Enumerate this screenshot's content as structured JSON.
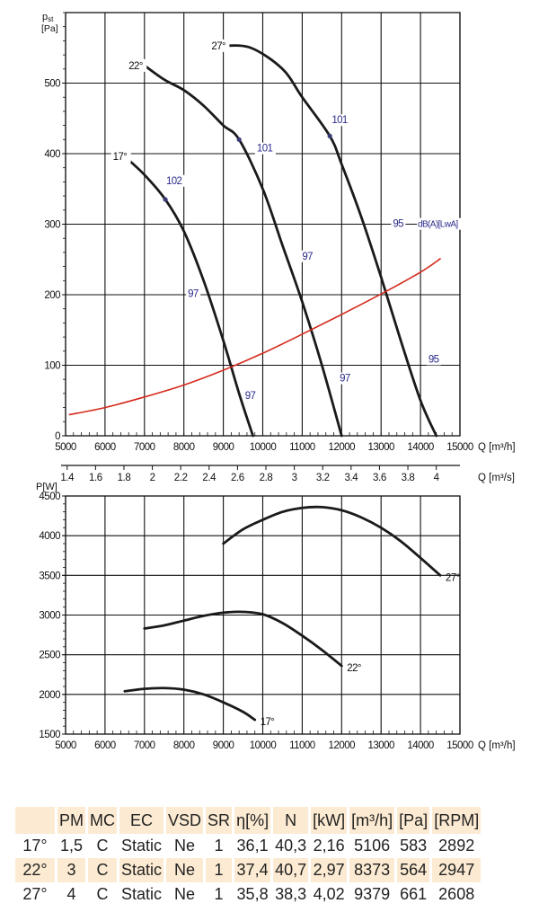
{
  "chart_data": [
    {
      "type": "line",
      "title": "",
      "ylabel": "p_st [Pa]",
      "ylabel_main": "p",
      "ylabel_sub": "st",
      "ylabel_unit": "[Pa]",
      "xlabel": "Q [m³/h]",
      "xlim": [
        5000,
        15000
      ],
      "ylim": [
        0,
        600
      ],
      "xticks": [
        5000,
        6000,
        7000,
        8000,
        9000,
        10000,
        11000,
        12000,
        13000,
        14000,
        15000
      ],
      "yticks": [
        0,
        100,
        200,
        300,
        400,
        500
      ],
      "grid": true,
      "secondary_xaxis": {
        "label": "Q [m³/s]",
        "ticks": [
          "1.4",
          "1.6",
          "1.8",
          "2",
          "2.2",
          "2.4",
          "2.6",
          "2.8",
          "3",
          "3.2",
          "3.4",
          "3.6",
          "3.8",
          "4"
        ]
      },
      "series": [
        {
          "name": "17°",
          "color": "#1a1a1a",
          "x": [
            6500,
            7000,
            7530,
            8000,
            8500,
            9000,
            9400,
            9750
          ],
          "y": [
            396,
            370,
            335,
            290,
            220,
            135,
            60,
            0
          ]
        },
        {
          "name": "22°",
          "color": "#1a1a1a",
          "x": [
            7000,
            7500,
            8000,
            8500,
            9000,
            9400,
            10000,
            10500,
            11000,
            11500,
            12000
          ],
          "y": [
            525,
            505,
            490,
            468,
            440,
            420,
            350,
            270,
            190,
            100,
            0
          ]
        },
        {
          "name": "27°",
          "color": "#1a1a1a",
          "x": [
            9000,
            9700,
            10500,
            11000,
            11700,
            12000,
            12500,
            13000,
            13500,
            14000,
            14400
          ],
          "y": [
            553,
            550,
            520,
            480,
            425,
            385,
            310,
            225,
            135,
            50,
            0
          ]
        },
        {
          "name": "system",
          "color": "#d42a1c",
          "x": [
            5100,
            6000,
            7000,
            8000,
            9000,
            10000,
            11000,
            12000,
            13000,
            14000,
            14500
          ],
          "y": [
            30,
            40,
            55,
            72,
            93,
            117,
            144,
            172,
            201,
            232,
            251
          ]
        }
      ],
      "markers": [
        {
          "series": "17°",
          "x": 7530,
          "y": 335
        },
        {
          "series": "22°",
          "x": 9400,
          "y": 420
        },
        {
          "series": "27°",
          "x": 11700,
          "y": 425
        }
      ],
      "annotations": [
        {
          "text": "102",
          "x": 7550,
          "y": 357
        },
        {
          "text": "101",
          "x": 9850,
          "y": 403
        },
        {
          "text": "101",
          "x": 11750,
          "y": 443
        },
        {
          "text": "97",
          "x": 8100,
          "y": 197
        },
        {
          "text": "97",
          "x": 9550,
          "y": 52
        },
        {
          "text": "97",
          "x": 11000,
          "y": 250
        },
        {
          "text": "97",
          "x": 11950,
          "y": 77
        },
        {
          "text": "95",
          "x": 13300,
          "y": 296
        },
        {
          "text": "dB(A)[LwA]",
          "x": 13930,
          "y": 296
        },
        {
          "text": "95",
          "x": 14200,
          "y": 104
        }
      ],
      "curve_labels": [
        {
          "text": "17°",
          "x": 6200,
          "y": 396
        },
        {
          "text": "22°",
          "x": 6600,
          "y": 525
        },
        {
          "text": "27°",
          "x": 8700,
          "y": 553
        }
      ]
    },
    {
      "type": "line",
      "title": "",
      "ylabel": "P[W]",
      "xlabel": "Q [m³/h]",
      "xlim": [
        5000,
        15000
      ],
      "ylim": [
        1500,
        4500
      ],
      "xticks": [
        5000,
        6000,
        7000,
        8000,
        9000,
        10000,
        11000,
        12000,
        13000,
        14000,
        15000
      ],
      "yticks": [
        1500,
        2000,
        2500,
        3000,
        3500,
        4000,
        4500
      ],
      "grid": true,
      "series": [
        {
          "name": "27°",
          "x": [
            9000,
            9500,
            10000,
            10500,
            11000,
            11500,
            12000,
            12500,
            13000,
            13500,
            14000,
            14500
          ],
          "y": [
            3900,
            4080,
            4200,
            4300,
            4350,
            4360,
            4320,
            4230,
            4100,
            3930,
            3720,
            3500
          ]
        },
        {
          "name": "22°",
          "x": [
            7000,
            7500,
            8000,
            8500,
            9000,
            9500,
            10000,
            10500,
            11000,
            11500,
            12000
          ],
          "y": [
            2830,
            2870,
            2930,
            2990,
            3030,
            3040,
            3010,
            2900,
            2740,
            2560,
            2360
          ]
        },
        {
          "name": "17°",
          "x": [
            6500,
            7000,
            7500,
            8000,
            8500,
            9000,
            9500,
            9800
          ],
          "y": [
            2040,
            2070,
            2080,
            2060,
            2000,
            1900,
            1780,
            1680
          ]
        }
      ]
    }
  ],
  "table": {
    "headers": [
      "",
      "PM",
      "MC",
      "EC",
      "VSD",
      "SR",
      "η[%]",
      "N",
      "[kW]",
      "[m³/h]",
      "[Pa]",
      "[RPM]"
    ],
    "rows": [
      [
        "17°",
        "1,5",
        "C",
        "Static",
        "Ne",
        "1",
        "36,1",
        "40,3",
        "2,16",
        "5106",
        "583",
        "2892"
      ],
      [
        "22°",
        "3",
        "C",
        "Static",
        "Ne",
        "1",
        "37,4",
        "40,7",
        "2,97",
        "8373",
        "564",
        "2947"
      ],
      [
        "27°",
        "4",
        "C",
        "Static",
        "Ne",
        "1",
        "35,8",
        "38,3",
        "4,02",
        "9379",
        "661",
        "2608"
      ]
    ]
  }
}
